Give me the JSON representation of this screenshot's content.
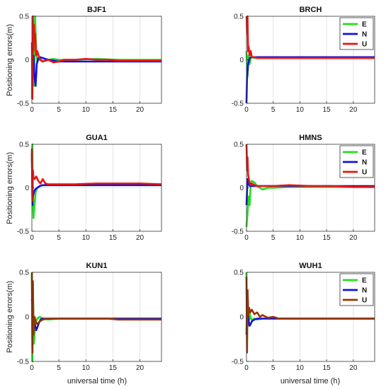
{
  "figure": {
    "ylabel": "Positioning errors(m)",
    "xlabel": "universal time (h)"
  },
  "colors": {
    "E": "#22dd22",
    "N": "#1111dd",
    "U": "#ee1111",
    "U_dark": "#9a3300"
  },
  "chart_data": [
    {
      "type": "line",
      "title": "BJF1",
      "xlim": [
        0,
        24
      ],
      "ylim": [
        -0.5,
        0.5
      ],
      "xticks": [
        0,
        5,
        10,
        15,
        20
      ],
      "yticks": [
        -0.5,
        0,
        0.5
      ],
      "grid": true,
      "legend": false,
      "series": [
        {
          "name": "E",
          "color": "#22dd22",
          "x": [
            0,
            0.2,
            0.4,
            0.6,
            0.8,
            1.0,
            1.5,
            2,
            3,
            4,
            5,
            8,
            12,
            16,
            20,
            24
          ],
          "y": [
            -0.45,
            0.45,
            -0.3,
            0.5,
            0.1,
            -0.03,
            0.02,
            -0.02,
            0.0,
            0.01,
            0.0,
            0.0,
            0.01,
            0.0,
            0.0,
            0.0
          ]
        },
        {
          "name": "N",
          "color": "#1111dd",
          "x": [
            0,
            0.3,
            0.5,
            0.7,
            0.9,
            1.2,
            1.5,
            2,
            2.5,
            3,
            4,
            5,
            8,
            12,
            16,
            20,
            24
          ],
          "y": [
            0.0,
            0.05,
            -0.2,
            -0.3,
            -0.05,
            0.02,
            0.03,
            0.02,
            0.01,
            0.0,
            -0.01,
            -0.02,
            -0.02,
            -0.02,
            -0.02,
            -0.02,
            -0.02
          ]
        },
        {
          "name": "U",
          "color": "#ee1111",
          "x": [
            0,
            0.1,
            0.2,
            0.3,
            0.4,
            0.5,
            0.6,
            0.8,
            1.0,
            1.5,
            2,
            3,
            4,
            5,
            6,
            8,
            10,
            12,
            14,
            16,
            20,
            24
          ],
          "y": [
            0.2,
            -0.45,
            0.5,
            0.1,
            0.4,
            0.2,
            0.3,
            0.05,
            0.1,
            0.0,
            -0.02,
            0.0,
            -0.03,
            -0.02,
            0.0,
            0.0,
            0.01,
            0.0,
            0.0,
            -0.01,
            -0.01,
            -0.01
          ]
        }
      ]
    },
    {
      "type": "line",
      "title": "BRCH",
      "xlim": [
        0,
        24
      ],
      "ylim": [
        -0.5,
        0.5
      ],
      "xticks": [
        0,
        5,
        10,
        15,
        20
      ],
      "yticks": [
        -0.5,
        0,
        0.5
      ],
      "grid": true,
      "legend": true,
      "series": [
        {
          "name": "E",
          "color": "#22dd22",
          "x": [
            0,
            0.2,
            0.4,
            0.6,
            0.8,
            1.0,
            1.5,
            2,
            3,
            5,
            10,
            15,
            20,
            24
          ],
          "y": [
            0.1,
            -0.2,
            0.05,
            -0.05,
            0.02,
            0.03,
            0.02,
            0.02,
            0.02,
            0.02,
            0.02,
            0.02,
            0.02,
            0.02
          ]
        },
        {
          "name": "N",
          "color": "#1111dd",
          "x": [
            0,
            0.1,
            0.3,
            0.6,
            1.0,
            1.5,
            2,
            3,
            5,
            10,
            15,
            20,
            24
          ],
          "y": [
            -0.5,
            -0.2,
            -0.05,
            0.02,
            0.03,
            0.03,
            0.03,
            0.03,
            0.03,
            0.03,
            0.03,
            0.03,
            0.03
          ]
        },
        {
          "name": "U",
          "color": "#ee1111",
          "x": [
            0,
            0.05,
            0.1,
            0.2,
            0.3,
            0.4,
            0.6,
            0.8,
            1.0,
            1.5,
            2,
            3,
            5,
            10,
            15,
            20,
            24
          ],
          "y": [
            0.5,
            0.45,
            0.3,
            0.5,
            0.1,
            0.15,
            0.05,
            0.1,
            0.03,
            0.03,
            0.02,
            0.02,
            0.02,
            0.02,
            0.02,
            0.02,
            0.02
          ]
        }
      ]
    },
    {
      "type": "line",
      "title": "GUA1",
      "xlim": [
        0,
        24
      ],
      "ylim": [
        -0.5,
        0.5
      ],
      "xticks": [
        0,
        5,
        10,
        15,
        20
      ],
      "yticks": [
        -0.5,
        0,
        0.5
      ],
      "grid": true,
      "legend": false,
      "series": [
        {
          "name": "E",
          "color": "#22dd22",
          "x": [
            0,
            0.1,
            0.2,
            0.3,
            0.5,
            0.7,
            1.0,
            1.5,
            2,
            3,
            5,
            8,
            12,
            16,
            20,
            24
          ],
          "y": [
            0.3,
            0.5,
            -0.2,
            -0.35,
            -0.2,
            -0.05,
            0.0,
            0.02,
            0.03,
            0.03,
            0.03,
            0.03,
            0.03,
            0.03,
            0.03,
            0.03
          ]
        },
        {
          "name": "N",
          "color": "#1111dd",
          "x": [
            0,
            0.1,
            0.2,
            0.4,
            0.6,
            1.0,
            1.5,
            2,
            3,
            5,
            10,
            15,
            20,
            24
          ],
          "y": [
            0.4,
            -0.2,
            -0.1,
            -0.05,
            -0.02,
            0.0,
            0.02,
            0.03,
            0.03,
            0.03,
            0.03,
            0.03,
            0.03,
            0.03
          ]
        },
        {
          "name": "U",
          "color": "#ee1111",
          "x": [
            0,
            0.1,
            0.2,
            0.3,
            0.5,
            0.8,
            1.2,
            1.6,
            2.0,
            2.5,
            3,
            4,
            5,
            8,
            12,
            16,
            20,
            24
          ],
          "y": [
            0.45,
            -0.15,
            0.2,
            0.12,
            0.1,
            0.13,
            0.08,
            0.05,
            0.1,
            0.05,
            0.04,
            0.04,
            0.04,
            0.04,
            0.05,
            0.05,
            0.05,
            0.04
          ]
        }
      ]
    },
    {
      "type": "line",
      "title": "HMNS",
      "xlim": [
        0,
        24
      ],
      "ylim": [
        -0.5,
        0.5
      ],
      "xticks": [
        0,
        5,
        10,
        15,
        20
      ],
      "yticks": [
        -0.5,
        0,
        0.5
      ],
      "grid": true,
      "legend": true,
      "series": [
        {
          "name": "E",
          "color": "#22dd22",
          "x": [
            0,
            0.2,
            0.4,
            0.6,
            0.8,
            1.0,
            1.5,
            2,
            2.5,
            3,
            4,
            5,
            8,
            12,
            16,
            20,
            24
          ],
          "y": [
            -0.45,
            -0.3,
            -0.1,
            -0.2,
            0.05,
            0.08,
            0.06,
            0.02,
            0.0,
            -0.02,
            0.0,
            0.0,
            0.01,
            0.01,
            0.01,
            0.01,
            0.01
          ]
        },
        {
          "name": "N",
          "color": "#1111dd",
          "x": [
            0,
            0.2,
            0.4,
            0.6,
            1.0,
            1.5,
            2,
            3,
            5,
            10,
            15,
            20,
            24
          ],
          "y": [
            -0.2,
            0.1,
            0.05,
            0.02,
            0.02,
            0.02,
            0.02,
            0.02,
            0.02,
            0.02,
            0.02,
            0.02,
            0.02
          ]
        },
        {
          "name": "U",
          "color": "#ee1111",
          "x": [
            0,
            0.05,
            0.1,
            0.2,
            0.3,
            0.5,
            0.7,
            1.0,
            1.5,
            2,
            3,
            4,
            5,
            8,
            12,
            16,
            20,
            24
          ],
          "y": [
            0.5,
            0.4,
            0.2,
            0.35,
            0.15,
            0.08,
            0.03,
            0.05,
            0.03,
            0.02,
            0.02,
            0.02,
            0.02,
            0.03,
            0.02,
            0.02,
            0.01,
            0.01
          ]
        }
      ]
    },
    {
      "type": "line",
      "title": "KUN1",
      "xlim": [
        0,
        24
      ],
      "ylim": [
        -0.5,
        0.5
      ],
      "xticks": [
        0,
        5,
        10,
        15,
        20
      ],
      "yticks": [
        -0.5,
        0,
        0.5
      ],
      "grid": true,
      "legend": false,
      "series": [
        {
          "name": "E",
          "color": "#22dd22",
          "x": [
            0,
            0.1,
            0.2,
            0.4,
            0.6,
            0.8,
            1.0,
            1.5,
            2,
            3,
            5,
            8,
            12,
            16,
            20,
            24
          ],
          "y": [
            0.5,
            -0.5,
            0.3,
            -0.3,
            -0.1,
            -0.05,
            -0.02,
            0.0,
            -0.02,
            -0.03,
            -0.02,
            -0.02,
            -0.02,
            -0.02,
            -0.02,
            -0.02
          ]
        },
        {
          "name": "N",
          "color": "#1111dd",
          "x": [
            0,
            0.2,
            0.4,
            0.6,
            0.8,
            1.0,
            1.3,
            1.6,
            2,
            2.5,
            3,
            5,
            8,
            12,
            16,
            20,
            24
          ],
          "y": [
            0.2,
            0.0,
            -0.05,
            -0.1,
            -0.15,
            -0.12,
            -0.07,
            -0.03,
            -0.02,
            -0.02,
            -0.02,
            -0.02,
            -0.02,
            -0.02,
            -0.02,
            -0.02,
            -0.02
          ]
        },
        {
          "name": "U",
          "color": "#9a3300",
          "x": [
            0,
            0.1,
            0.2,
            0.3,
            0.5,
            0.7,
            1.0,
            1.5,
            2,
            3,
            4,
            5,
            8,
            10,
            12,
            14,
            16,
            20,
            24
          ],
          "y": [
            0.5,
            -0.4,
            0.4,
            -0.2,
            0.0,
            -0.05,
            -0.08,
            -0.05,
            -0.03,
            -0.02,
            -0.02,
            -0.02,
            -0.02,
            -0.02,
            -0.02,
            -0.02,
            -0.03,
            -0.03,
            -0.03
          ]
        }
      ]
    },
    {
      "type": "line",
      "title": "WUH1",
      "xlim": [
        0,
        24
      ],
      "ylim": [
        -0.5,
        0.5
      ],
      "xticks": [
        0,
        5,
        10,
        15,
        20
      ],
      "yticks": [
        -0.5,
        0,
        0.5
      ],
      "grid": true,
      "legend": true,
      "series": [
        {
          "name": "E",
          "color": "#22dd22",
          "x": [
            0,
            0.1,
            0.2,
            0.4,
            0.6,
            0.8,
            1.0,
            1.5,
            2,
            3,
            5,
            8,
            12,
            16,
            20,
            24
          ],
          "y": [
            0.5,
            -0.3,
            0.2,
            -0.1,
            0.05,
            -0.02,
            -0.03,
            -0.02,
            -0.03,
            -0.02,
            -0.02,
            -0.02,
            -0.02,
            -0.02,
            -0.02,
            -0.02
          ]
        },
        {
          "name": "N",
          "color": "#1111dd",
          "x": [
            0,
            0.2,
            0.4,
            0.6,
            0.8,
            1.0,
            1.5,
            2,
            3,
            5,
            8,
            12,
            16,
            20,
            24
          ],
          "y": [
            -0.2,
            0.3,
            -0.05,
            -0.1,
            -0.08,
            -0.05,
            -0.03,
            -0.02,
            -0.02,
            -0.02,
            -0.02,
            -0.02,
            -0.02,
            -0.02,
            -0.02
          ]
        },
        {
          "name": "U",
          "color": "#9a3300",
          "x": [
            0,
            0.1,
            0.2,
            0.3,
            0.5,
            0.7,
            1.0,
            1.5,
            2,
            2.5,
            3,
            4,
            5,
            6,
            7,
            8,
            10,
            12,
            16,
            20,
            24
          ],
          "y": [
            0.45,
            -0.4,
            0.3,
            0.0,
            0.1,
            0.05,
            0.08,
            0.03,
            0.05,
            0.0,
            0.02,
            -0.01,
            0.0,
            -0.02,
            -0.02,
            -0.02,
            -0.02,
            -0.02,
            -0.02,
            -0.02,
            -0.02
          ]
        }
      ]
    }
  ]
}
